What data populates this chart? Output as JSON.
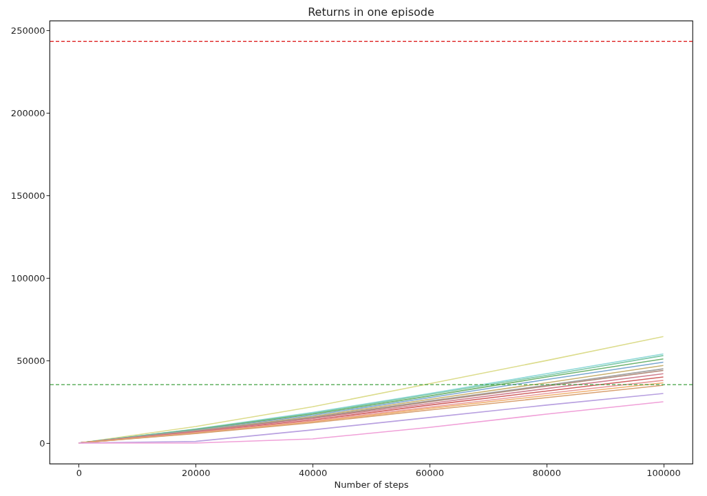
{
  "chart_data": {
    "type": "line",
    "title": "Returns in one episode",
    "xlabel": "Number of steps",
    "xlim": [
      -5000,
      105000
    ],
    "xticks": [
      0,
      20000,
      40000,
      60000,
      80000,
      100000
    ],
    "ylim": [
      -12500,
      256000
    ],
    "yticks": [
      0,
      50000,
      100000,
      150000,
      200000,
      250000
    ],
    "grid": false,
    "legend": false,
    "line_style": "solid",
    "marker": "none",
    "x": [
      0,
      20000,
      40000,
      60000,
      80000,
      100000
    ],
    "series": [
      {
        "color": "#dcdc8c",
        "values": [
          0,
          10000,
          22000,
          36000,
          50000,
          64500
        ]
      },
      {
        "color": "#8ed8d8",
        "values": [
          0,
          8500,
          18500,
          30000,
          42000,
          54000
        ]
      },
      {
        "color": "#7cc8a8",
        "values": [
          0,
          8300,
          18000,
          29500,
          41000,
          53000
        ]
      },
      {
        "color": "#6fb36f",
        "values": [
          0,
          8200,
          17500,
          28500,
          40000,
          51000
        ]
      },
      {
        "color": "#7aa6d0",
        "values": [
          0,
          7800,
          16800,
          27500,
          38500,
          49000
        ]
      },
      {
        "color": "#c8b070",
        "values": [
          0,
          7500,
          16000,
          26500,
          36500,
          47000
        ]
      },
      {
        "color": "#a0a0a0",
        "values": [
          0,
          7300,
          15500,
          25500,
          35000,
          45000
        ]
      },
      {
        "color": "#b08878",
        "values": [
          0,
          7100,
          15200,
          25000,
          34500,
          44000
        ]
      },
      {
        "color": "#d08090",
        "values": [
          0,
          6900,
          14800,
          24000,
          33000,
          42000
        ]
      },
      {
        "color": "#d06060",
        "values": [
          0,
          6600,
          14000,
          23000,
          31500,
          40000
        ]
      },
      {
        "color": "#e89a9a",
        "values": [
          0,
          6300,
          13300,
          21800,
          30000,
          38000
        ]
      },
      {
        "color": "#f0b070",
        "values": [
          0,
          6000,
          12800,
          21000,
          28800,
          36500
        ]
      },
      {
        "color": "#d8a070",
        "values": [
          0,
          5800,
          12300,
          20000,
          27500,
          35000
        ]
      },
      {
        "color": "#b8a0e0",
        "values": [
          0,
          1000,
          8000,
          15500,
          23000,
          30000
        ]
      },
      {
        "color": "#f0a0d8",
        "values": [
          0,
          0,
          2500,
          9500,
          17500,
          25000
        ]
      }
    ],
    "ref_lines": [
      {
        "axis": "y",
        "value": 243400,
        "color": "#e03030",
        "line_style": "dashed"
      },
      {
        "axis": "y",
        "value": 35400,
        "color": "#40a040",
        "line_style": "dashed"
      }
    ]
  }
}
